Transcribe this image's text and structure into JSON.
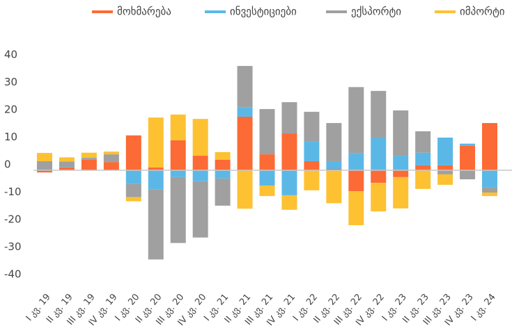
{
  "chart_data": {
    "type": "stacked_bar",
    "categories": [
      "I კვ. 19",
      "II კვ. 19",
      "III კვ. 19",
      "IV კვ. 19",
      "I კვ. 20",
      "II კვ. 20",
      "III კვ. 20",
      "IV კვ. 20",
      "I კვ. 21",
      "II კვ. 21",
      "III კვ. 21",
      "IV კვ. 21",
      "I კვ. 22",
      "II კვ. 22",
      "III კვ. 22",
      "IV კვ. 22",
      "I კვ. 23",
      "II კვ. 23",
      "III კვ. 23",
      "IV კვ. 23",
      "I კვ. 24"
    ],
    "series": [
      {
        "name": "მოხმარება",
        "color": "#fc6a35",
        "values": [
          -0.8,
          1,
          3.8,
          3,
          12.7,
          1,
          10.9,
          5.3,
          3.8,
          19.5,
          5.8,
          13.4,
          3.3,
          0.5,
          -7.6,
          -4.6,
          -2.5,
          1.8,
          1.8,
          8.9,
          17.2
        ]
      },
      {
        "name": "ინვესტიციები",
        "color": "#5bb8e6",
        "values": [
          0.5,
          0.2,
          0.3,
          0.3,
          -5,
          -7,
          -2.5,
          -4,
          -3,
          3.5,
          -5.6,
          -9.1,
          7.1,
          2.8,
          6.3,
          11.9,
          5.3,
          4.6,
          10.1,
          0.8,
          -6.3
        ]
      },
      {
        "name": "ექსპორტი",
        "color": "#a0a0a0",
        "values": [
          2.8,
          2,
          0.5,
          2.5,
          -4.8,
          -25.5,
          -24,
          -20.5,
          -9.9,
          15,
          16.5,
          11.4,
          10.9,
          13.9,
          24,
          17,
          16.5,
          7.8,
          -1.5,
          -3.3,
          -1.8
        ]
      },
      {
        "name": "იმპორტი",
        "color": "#fdc132",
        "values": [
          3,
          1.5,
          1.8,
          1,
          -1.5,
          18.2,
          9.4,
          13.4,
          2.8,
          -14,
          -3.8,
          -5.3,
          -7.3,
          -12,
          -12.4,
          -10.4,
          -11.4,
          -6.8,
          -3.8,
          0,
          -1.3
        ]
      }
    ],
    "ylim": [
      -40,
      40
    ],
    "yticks": [
      -40,
      -30,
      -20,
      -10,
      0,
      10,
      20,
      30,
      40
    ],
    "grid": false
  }
}
